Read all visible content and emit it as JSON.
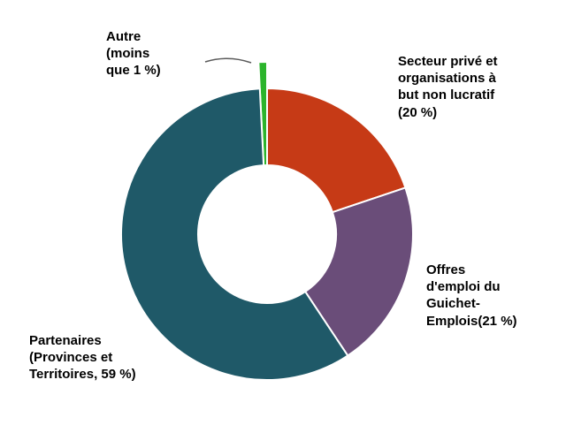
{
  "chart_data": {
    "type": "pie",
    "subtype": "donut",
    "title": "",
    "legend_position": "none",
    "background": "#ffffff",
    "separator_color": "#ffffff",
    "segments": [
      {
        "name": "autre",
        "label": "Autre (moins que 1 %)",
        "value_text": "moins que 1 %",
        "share": 0.8,
        "color": "#2cb42c"
      },
      {
        "name": "secteur-prive",
        "label": "Secteur privé et organisations à but non lucratif",
        "value_text": "20 %",
        "share": 20,
        "color": "#c63a16"
      },
      {
        "name": "offres-emploi",
        "label": "Offres d'emploi du Guichet-Emplois",
        "value_text": "21 %",
        "share": 21,
        "color": "#6a4d79"
      },
      {
        "name": "partenaires",
        "label": "Partenaires (Provinces et Territoires)",
        "value_text": "59 %",
        "share": 59,
        "color": "#1f5968"
      }
    ]
  },
  "labels": {
    "autre": "Autre\n(moins\nque  1 %)",
    "secteur": "Secteur privé et\norganisations à\nbut non lucratif\n(20 %)",
    "offres": "Offres\nd'emploi du\nGuichet-\nEmplois(21 %)",
    "partenaires": "Partenaires\n(Provinces et\nTerritoires, 59 %)"
  }
}
